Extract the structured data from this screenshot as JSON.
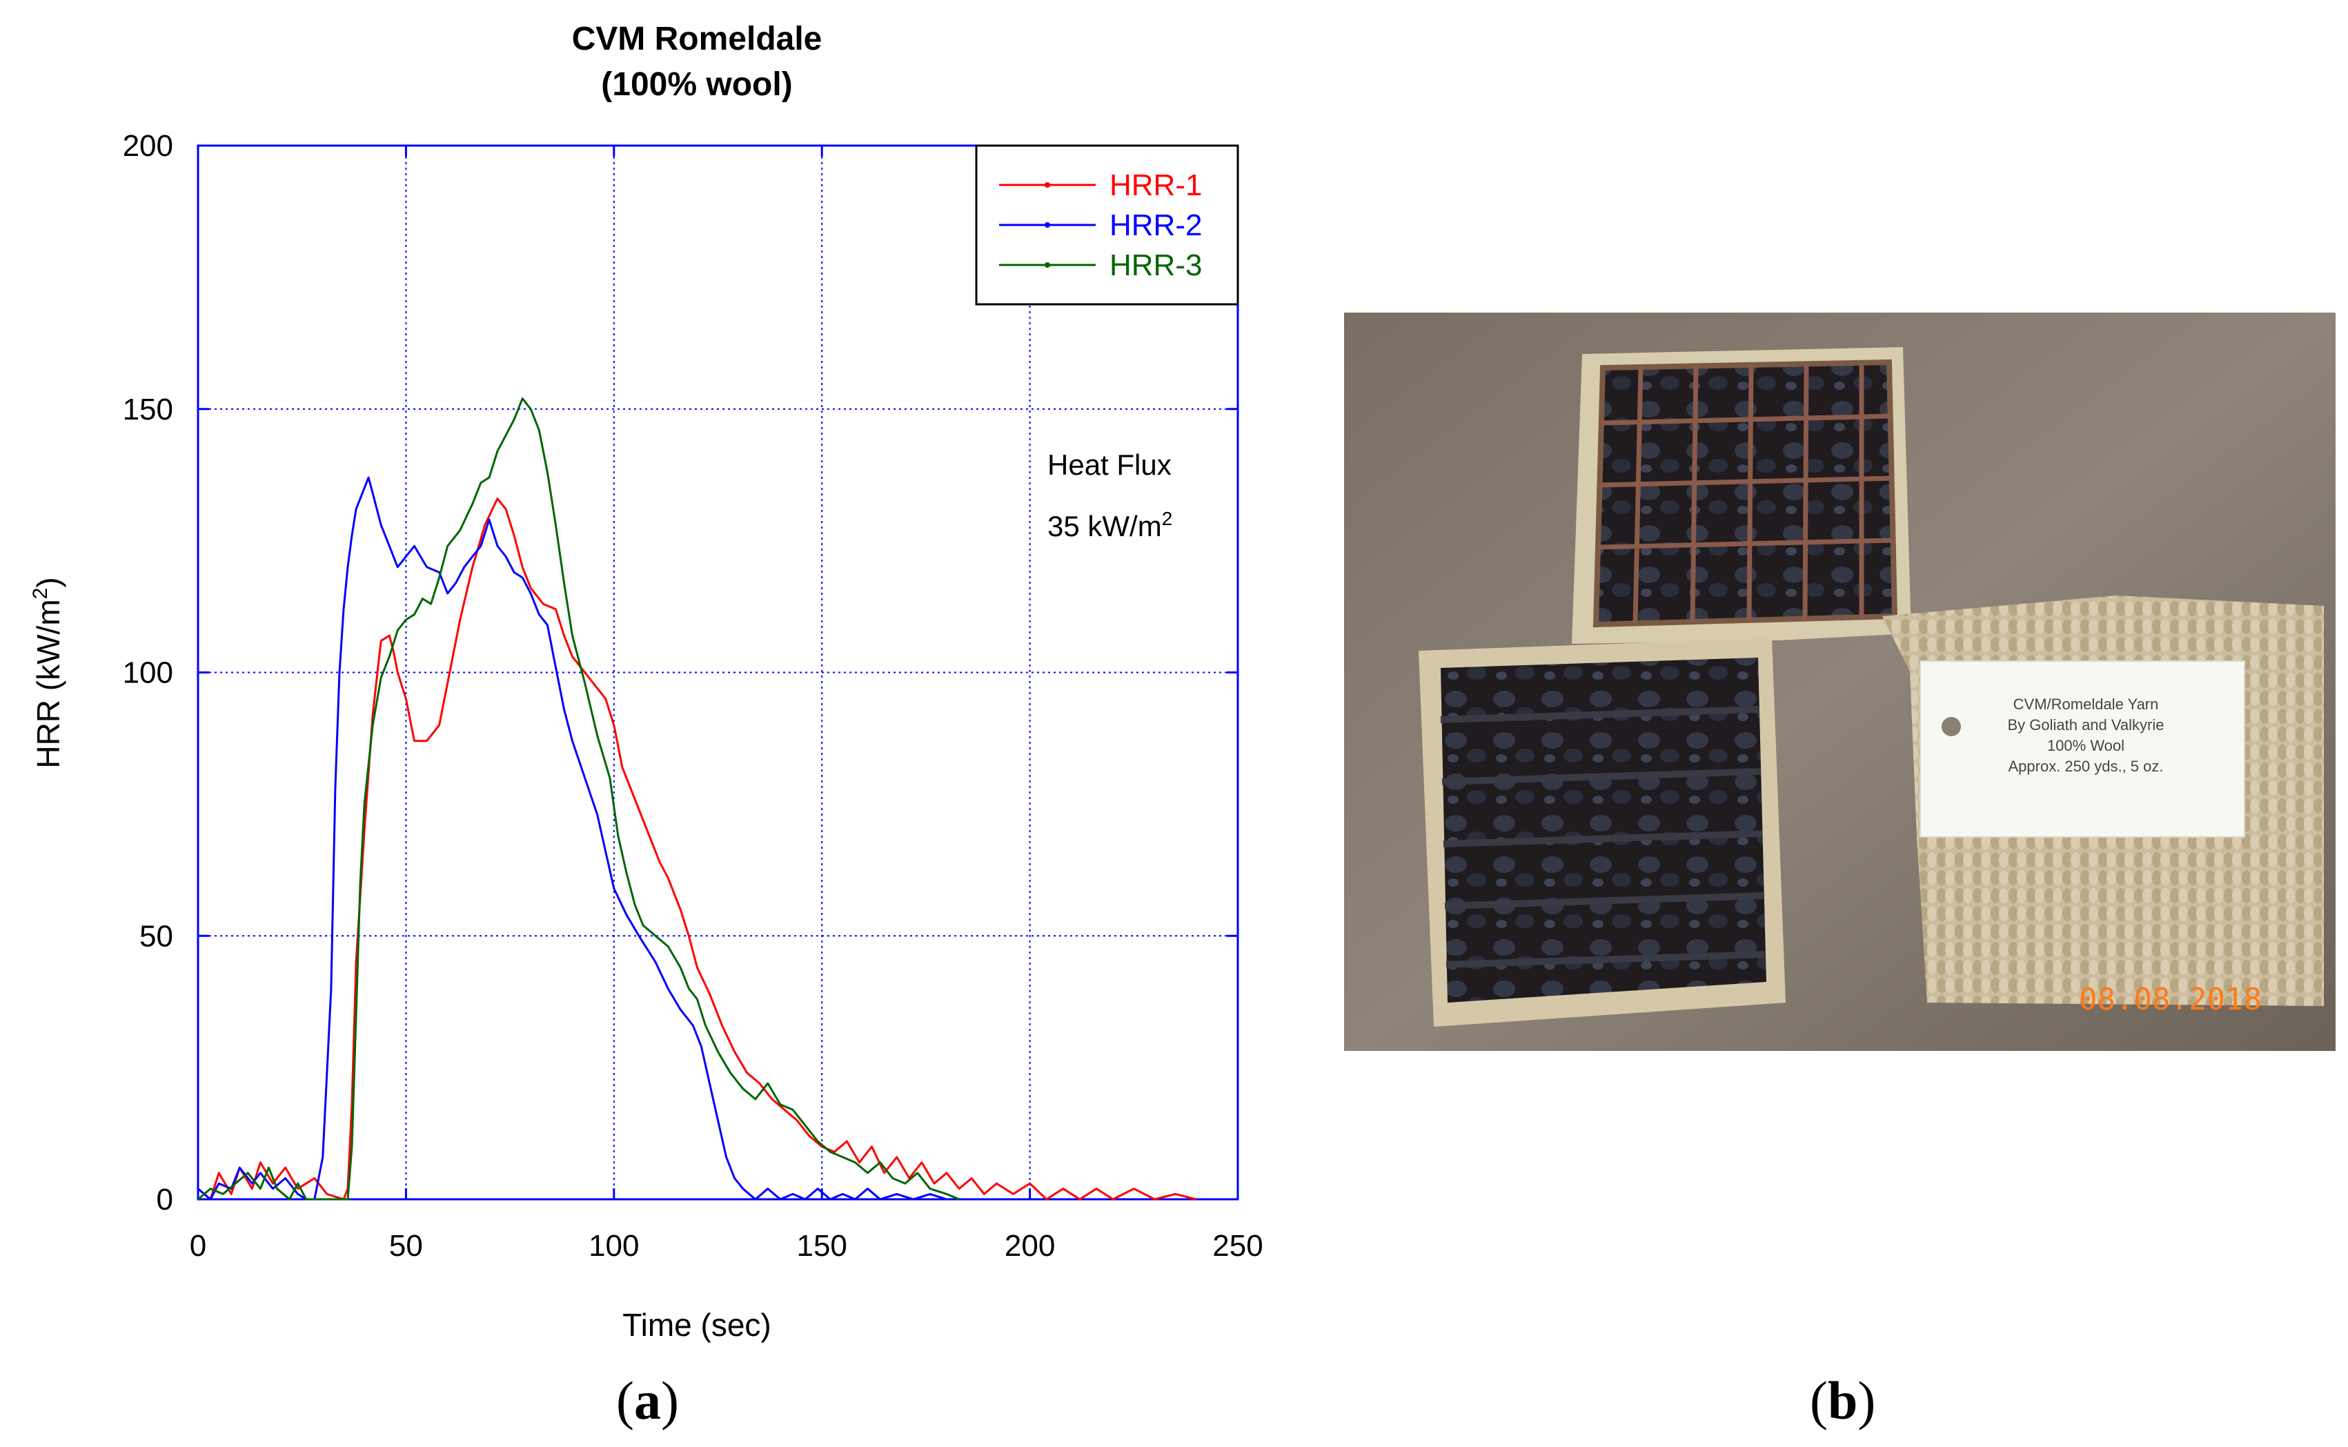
{
  "panel_a": {
    "caption_letter": "a",
    "heat_flux_label": "Heat Flux",
    "heat_flux_value": "35 kW/m",
    "heat_flux_exponent": "2"
  },
  "panel_b": {
    "caption_letter": "b",
    "tag_lines": [
      "CVM/Romeldale Yarn",
      "By Goliath and Valkyrie",
      "100% Wool",
      "Approx. 250 yds., 5 oz."
    ],
    "date_stamp": "08.08.2018"
  },
  "colors": {
    "axis": "#0000ff",
    "hrr1": "#ff0000",
    "hrr2": "#0000ff",
    "hrr3": "#006600"
  },
  "chart_data": {
    "type": "line",
    "title_line1": "CVM Romeldale",
    "title_line2": "(100% wool)",
    "xlabel": "Time (sec)",
    "ylabel_prefix": "HRR (kW/m",
    "ylabel_exponent": "2",
    "ylabel_suffix": ")",
    "xlim": [
      0,
      250
    ],
    "ylim": [
      0,
      200
    ],
    "xticks": [
      0,
      50,
      100,
      150,
      200,
      250
    ],
    "yticks": [
      0,
      50,
      100,
      150,
      200
    ],
    "grid": true,
    "legend_position": "top-right",
    "series": [
      {
        "name": "HRR-1",
        "color": "#ff0000",
        "points": [
          [
            0,
            2
          ],
          [
            3,
            0
          ],
          [
            5,
            5
          ],
          [
            8,
            1
          ],
          [
            10,
            6
          ],
          [
            13,
            2
          ],
          [
            15,
            7
          ],
          [
            18,
            3
          ],
          [
            21,
            6
          ],
          [
            24,
            2
          ],
          [
            28,
            4
          ],
          [
            31,
            1
          ],
          [
            35,
            0
          ],
          [
            36,
            2
          ],
          [
            37,
            18
          ],
          [
            38,
            45
          ],
          [
            40,
            70
          ],
          [
            42,
            92
          ],
          [
            44,
            106
          ],
          [
            46,
            107
          ],
          [
            47,
            104
          ],
          [
            48,
            100
          ],
          [
            50,
            95
          ],
          [
            52,
            87
          ],
          [
            55,
            87
          ],
          [
            58,
            90
          ],
          [
            60,
            98
          ],
          [
            63,
            110
          ],
          [
            66,
            120
          ],
          [
            69,
            128
          ],
          [
            72,
            133
          ],
          [
            74,
            131
          ],
          [
            76,
            126
          ],
          [
            78,
            120
          ],
          [
            80,
            116
          ],
          [
            83,
            113
          ],
          [
            86,
            112
          ],
          [
            88,
            107
          ],
          [
            90,
            103
          ],
          [
            93,
            100
          ],
          [
            96,
            97
          ],
          [
            98,
            95
          ],
          [
            100,
            90
          ],
          [
            102,
            82
          ],
          [
            105,
            76
          ],
          [
            108,
            70
          ],
          [
            111,
            64
          ],
          [
            113,
            61
          ],
          [
            116,
            55
          ],
          [
            118,
            50
          ],
          [
            120,
            44
          ],
          [
            123,
            39
          ],
          [
            126,
            33
          ],
          [
            129,
            28
          ],
          [
            132,
            24
          ],
          [
            135,
            22
          ],
          [
            138,
            19
          ],
          [
            141,
            17
          ],
          [
            144,
            15
          ],
          [
            147,
            12
          ],
          [
            150,
            10
          ],
          [
            153,
            9
          ],
          [
            156,
            11
          ],
          [
            159,
            7
          ],
          [
            162,
            10
          ],
          [
            165,
            5
          ],
          [
            168,
            8
          ],
          [
            171,
            4
          ],
          [
            174,
            7
          ],
          [
            177,
            3
          ],
          [
            180,
            5
          ],
          [
            183,
            2
          ],
          [
            186,
            4
          ],
          [
            189,
            1
          ],
          [
            192,
            3
          ],
          [
            196,
            1
          ],
          [
            200,
            3
          ],
          [
            204,
            0
          ],
          [
            208,
            2
          ],
          [
            212,
            0
          ],
          [
            216,
            2
          ],
          [
            220,
            0
          ],
          [
            225,
            2
          ],
          [
            230,
            0
          ],
          [
            235,
            1
          ],
          [
            240,
            0
          ]
        ]
      },
      {
        "name": "HRR-2",
        "color": "#0000ff",
        "points": [
          [
            0,
            2
          ],
          [
            3,
            0
          ],
          [
            5,
            3
          ],
          [
            8,
            2
          ],
          [
            10,
            6
          ],
          [
            13,
            3
          ],
          [
            15,
            5
          ],
          [
            18,
            2
          ],
          [
            21,
            4
          ],
          [
            24,
            1
          ],
          [
            26,
            0
          ],
          [
            28,
            0
          ],
          [
            30,
            8
          ],
          [
            32,
            40
          ],
          [
            33,
            78
          ],
          [
            34,
            100
          ],
          [
            35,
            112
          ],
          [
            36,
            120
          ],
          [
            37,
            126
          ],
          [
            38,
            131
          ],
          [
            40,
            135
          ],
          [
            41,
            137
          ],
          [
            42,
            134
          ],
          [
            44,
            128
          ],
          [
            46,
            124
          ],
          [
            48,
            120
          ],
          [
            50,
            122
          ],
          [
            52,
            124
          ],
          [
            55,
            120
          ],
          [
            58,
            119
          ],
          [
            60,
            115
          ],
          [
            62,
            117
          ],
          [
            64,
            120
          ],
          [
            66,
            122
          ],
          [
            68,
            124
          ],
          [
            70,
            129
          ],
          [
            72,
            124
          ],
          [
            74,
            122
          ],
          [
            76,
            119
          ],
          [
            78,
            118
          ],
          [
            80,
            115
          ],
          [
            82,
            111
          ],
          [
            84,
            109
          ],
          [
            86,
            101
          ],
          [
            88,
            93
          ],
          [
            90,
            87
          ],
          [
            93,
            80
          ],
          [
            96,
            73
          ],
          [
            98,
            66
          ],
          [
            100,
            59
          ],
          [
            103,
            54
          ],
          [
            106,
            50
          ],
          [
            110,
            45
          ],
          [
            113,
            40
          ],
          [
            116,
            36
          ],
          [
            119,
            33
          ],
          [
            121,
            29
          ],
          [
            123,
            22
          ],
          [
            125,
            15
          ],
          [
            127,
            8
          ],
          [
            129,
            4
          ],
          [
            131,
            2
          ],
          [
            134,
            0
          ],
          [
            137,
            2
          ],
          [
            140,
            0
          ],
          [
            143,
            1
          ],
          [
            146,
            0
          ],
          [
            149,
            2
          ],
          [
            152,
            0
          ],
          [
            155,
            1
          ],
          [
            158,
            0
          ],
          [
            161,
            2
          ],
          [
            164,
            0
          ],
          [
            168,
            1
          ],
          [
            172,
            0
          ],
          [
            176,
            1
          ],
          [
            180,
            0
          ]
        ]
      },
      {
        "name": "HRR-3",
        "color": "#006600",
        "points": [
          [
            0,
            0
          ],
          [
            3,
            2
          ],
          [
            6,
            1
          ],
          [
            9,
            3
          ],
          [
            12,
            5
          ],
          [
            15,
            2
          ],
          [
            17,
            6
          ],
          [
            19,
            2
          ],
          [
            22,
            0
          ],
          [
            24,
            3
          ],
          [
            26,
            0
          ],
          [
            36,
            0
          ],
          [
            37,
            10
          ],
          [
            38,
            35
          ],
          [
            39,
            60
          ],
          [
            40,
            75
          ],
          [
            42,
            90
          ],
          [
            44,
            99
          ],
          [
            46,
            103
          ],
          [
            48,
            108
          ],
          [
            50,
            110
          ],
          [
            52,
            111
          ],
          [
            54,
            114
          ],
          [
            56,
            113
          ],
          [
            58,
            118
          ],
          [
            60,
            124
          ],
          [
            63,
            127
          ],
          [
            66,
            132
          ],
          [
            68,
            136
          ],
          [
            70,
            137
          ],
          [
            72,
            142
          ],
          [
            74,
            145
          ],
          [
            76,
            148
          ],
          [
            78,
            152
          ],
          [
            80,
            150
          ],
          [
            82,
            146
          ],
          [
            84,
            138
          ],
          [
            86,
            128
          ],
          [
            88,
            117
          ],
          [
            90,
            107
          ],
          [
            93,
            98
          ],
          [
            96,
            88
          ],
          [
            99,
            80
          ],
          [
            101,
            69
          ],
          [
            103,
            62
          ],
          [
            105,
            56
          ],
          [
            107,
            52
          ],
          [
            110,
            50
          ],
          [
            113,
            48
          ],
          [
            116,
            44
          ],
          [
            118,
            40
          ],
          [
            120,
            38
          ],
          [
            122,
            33
          ],
          [
            125,
            28
          ],
          [
            128,
            24
          ],
          [
            131,
            21
          ],
          [
            134,
            19
          ],
          [
            137,
            22
          ],
          [
            140,
            18
          ],
          [
            143,
            17
          ],
          [
            146,
            14
          ],
          [
            149,
            11
          ],
          [
            152,
            9
          ],
          [
            155,
            8
          ],
          [
            158,
            7
          ],
          [
            161,
            5
          ],
          [
            164,
            7
          ],
          [
            167,
            4
          ],
          [
            170,
            3
          ],
          [
            173,
            5
          ],
          [
            176,
            2
          ],
          [
            180,
            1
          ],
          [
            183,
            0
          ]
        ]
      }
    ]
  }
}
